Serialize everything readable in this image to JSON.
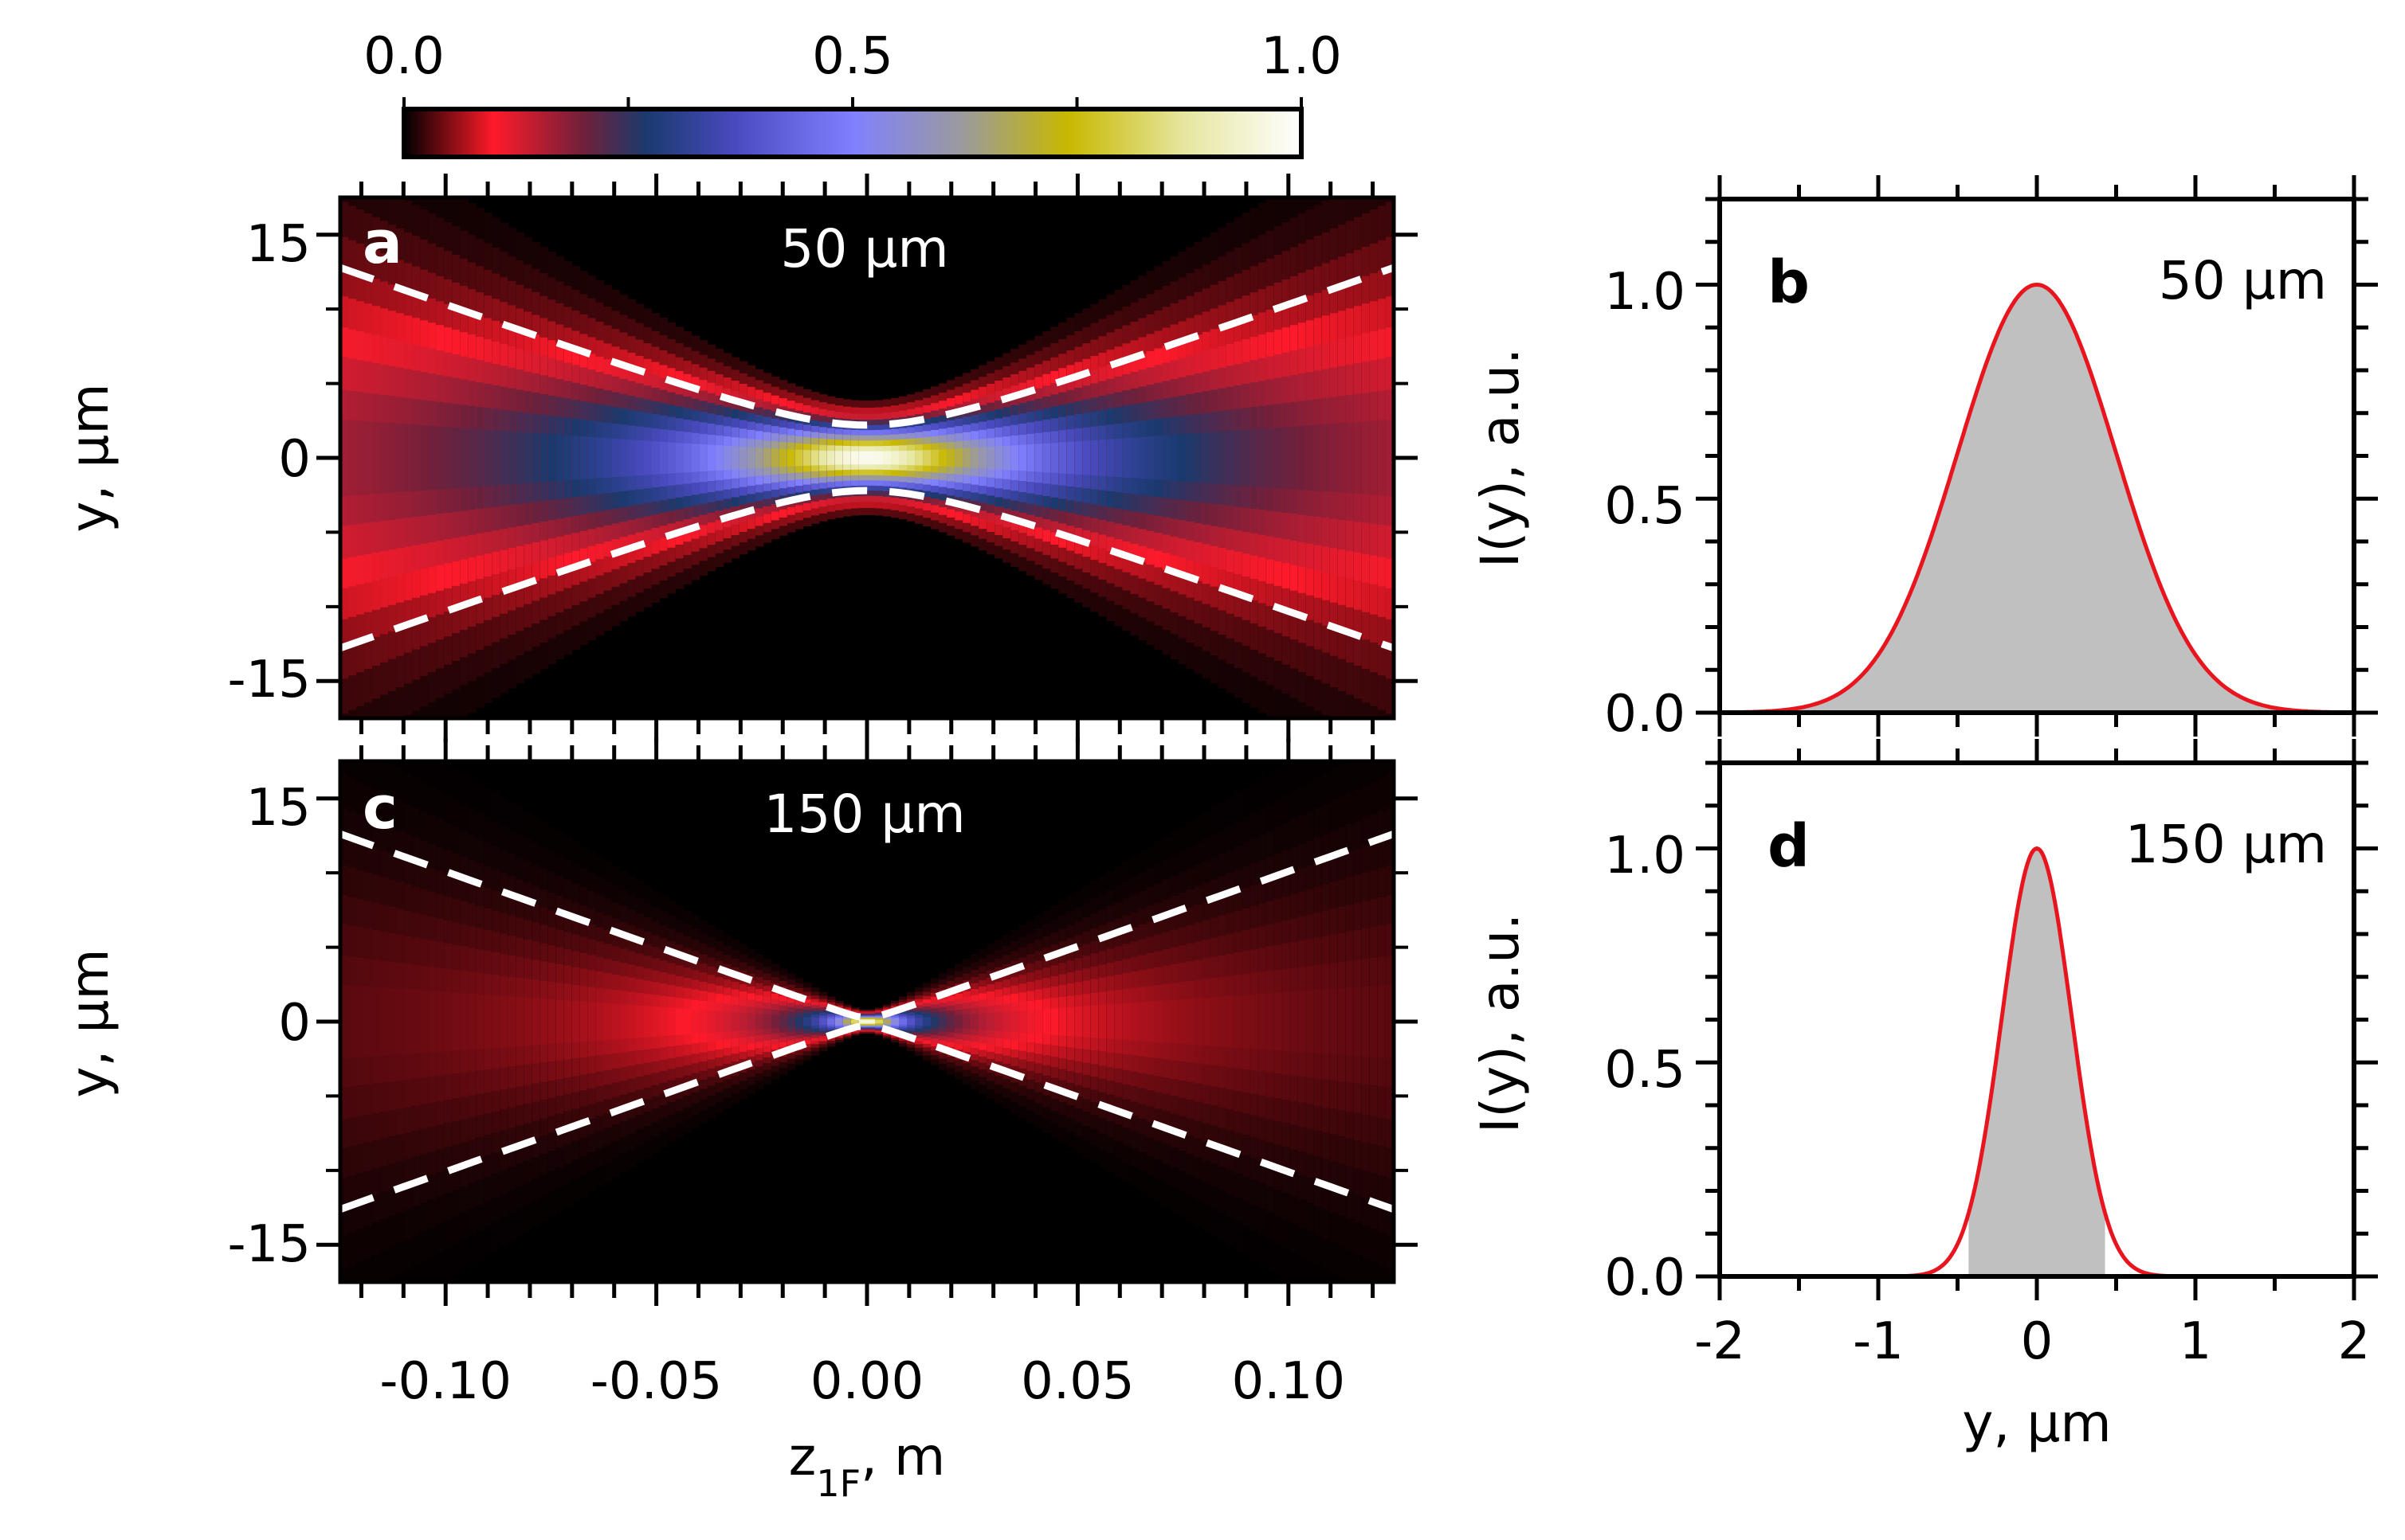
{
  "colorbar": {
    "ticks": [
      "0.0",
      "0.5",
      "1.0"
    ],
    "tick_values": [
      0.0,
      0.5,
      1.0
    ],
    "stops": [
      {
        "v": 0.0,
        "color": "#000000"
      },
      {
        "v": 0.1,
        "color": "#ff1a2a"
      },
      {
        "v": 0.2,
        "color": "#70203a"
      },
      {
        "v": 0.27,
        "color": "#1a3a6e"
      },
      {
        "v": 0.37,
        "color": "#4a4ac0"
      },
      {
        "v": 0.5,
        "color": "#8080ff"
      },
      {
        "v": 0.62,
        "color": "#9a9aa0"
      },
      {
        "v": 0.74,
        "color": "#c8b800"
      },
      {
        "v": 0.87,
        "color": "#e6e6a0"
      },
      {
        "v": 1.0,
        "color": "#ffffff"
      }
    ]
  },
  "chart_data": [
    {
      "panel": "a",
      "type": "heatmap",
      "label": "a",
      "annotation": "50 μm",
      "ylabel": "y, μm",
      "xlim": [
        -0.125,
        0.125
      ],
      "ylim": [
        -17.5,
        17.5
      ],
      "yticks": [
        "15",
        "0",
        "-15"
      ],
      "ytick_values": [
        15,
        0,
        -15
      ],
      "aperture_um": 50,
      "envelope": {
        "w0_um": 2.2,
        "zR_m": 0.0216
      },
      "dashed_lines": {
        "color": "#ffffff",
        "waist_um": 2.2,
        "half_width_at_z_0_11_um": 11.3
      }
    },
    {
      "panel": "c",
      "type": "heatmap",
      "label": "c",
      "annotation": "150 μm",
      "ylabel": "y, μm",
      "xlabel": "z",
      "xlabel_sub": "1F",
      "xlabel_unit": ", m",
      "xlim": [
        -0.125,
        0.125
      ],
      "ylim": [
        -17.5,
        17.5
      ],
      "xticks": [
        "-0.10",
        "-0.05",
        "0.00",
        "0.05",
        "0.10"
      ],
      "xtick_values": [
        -0.1,
        -0.05,
        0.0,
        0.05,
        0.1
      ],
      "yticks": [
        "15",
        "0",
        "-15"
      ],
      "ytick_values": [
        15,
        0,
        -15
      ],
      "aperture_um": 150,
      "envelope": {
        "w0_um": 0.45,
        "zR_m": 0.0045
      },
      "dashed_lines": {
        "color": "#ffffff",
        "waist_um": 0.25,
        "half_width_at_z_0_11_um": 11.1
      }
    },
    {
      "panel": "b",
      "type": "area",
      "label": "b",
      "annotation": "50 μm",
      "ylabel": "I(y), a.u.",
      "xlim": [
        -2,
        2
      ],
      "ylim": [
        0,
        1.2
      ],
      "yticks": [
        "1.0",
        "0.5",
        "0.0"
      ],
      "ytick_values": [
        1.0,
        0.5,
        0.0
      ],
      "curve": {
        "shape": "gaussian",
        "peak": 1.0,
        "center_um": 0.0,
        "sigma_um": 0.5,
        "color": "#e8141e"
      },
      "fill": {
        "color": "#c0c0c0",
        "from_um": -2.0,
        "to_um": 2.0
      }
    },
    {
      "panel": "d",
      "type": "area",
      "label": "d",
      "annotation": "150 μm",
      "ylabel": "I(y), a.u.",
      "xlabel": "y, μm",
      "xlim": [
        -2,
        2
      ],
      "ylim": [
        0,
        1.2
      ],
      "xticks": [
        "-2",
        "-1",
        "0",
        "1",
        "2"
      ],
      "xtick_values": [
        -2,
        -1,
        0,
        1,
        2
      ],
      "yticks": [
        "1.0",
        "0.5",
        "0.0"
      ],
      "ytick_values": [
        1.0,
        0.5,
        0.0
      ],
      "curve": {
        "shape": "gaussian",
        "peak": 1.0,
        "center_um": 0.0,
        "sigma_um": 0.22,
        "color": "#e8141e"
      },
      "fill": {
        "color": "#c0c0c0",
        "from_um": -0.43,
        "to_um": 0.43
      }
    }
  ]
}
